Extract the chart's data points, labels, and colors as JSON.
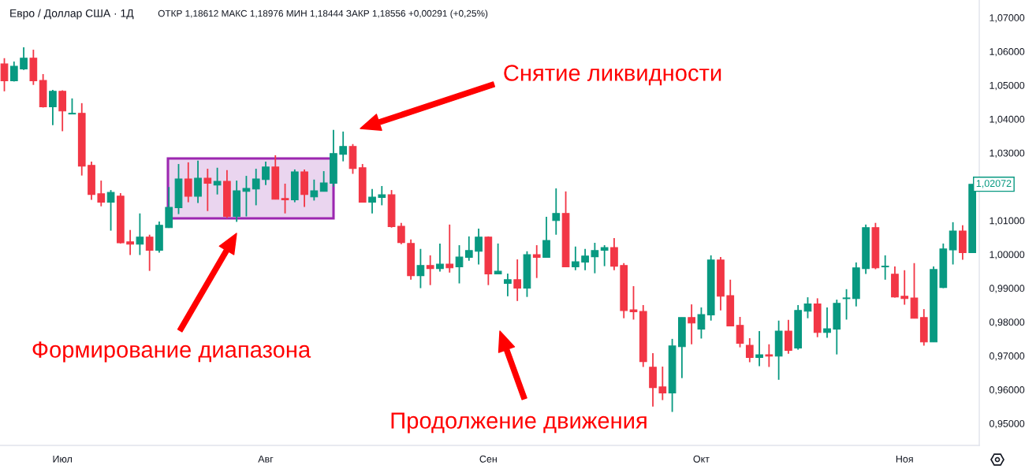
{
  "chart_data": {
    "type": "candlestick",
    "title": "Евро / Доллар США · 1Д",
    "subtitle": "ОТКР 1,18612 МАКС 1,18976 МИН 1,18444 ЗАКР 1,18556 +0,00291 (+0,25%)",
    "categories": [
      null,
      null,
      null,
      null,
      null,
      null,
      "Июл",
      null,
      null,
      null,
      null,
      null,
      null,
      null,
      null,
      null,
      null,
      null,
      null,
      null,
      null,
      null,
      null,
      null,
      null,
      null,
      null,
      "Авг",
      null,
      null,
      null,
      null,
      null,
      null,
      null,
      null,
      null,
      null,
      null,
      null,
      null,
      null,
      null,
      null,
      null,
      null,
      null,
      null,
      null,
      null,
      "Сен",
      null,
      null,
      null,
      null,
      null,
      null,
      null,
      null,
      null,
      null,
      null,
      null,
      null,
      null,
      null,
      null,
      null,
      null,
      null,
      null,
      null,
      "Окт",
      null,
      null,
      null,
      null,
      null,
      null,
      null,
      null,
      null,
      null,
      null,
      null,
      null,
      null,
      null,
      null,
      null,
      null,
      null,
      null,
      "Ноя",
      null,
      null,
      null,
      null,
      null,
      null,
      null
    ],
    "ohlc": [
      [
        1.0563,
        1.058,
        1.0482,
        1.0513
      ],
      [
        1.0513,
        1.057,
        1.0511,
        1.0556
      ],
      [
        1.0548,
        1.0612,
        1.0545,
        1.058
      ],
      [
        1.058,
        1.0605,
        1.0501,
        1.0513
      ],
      [
        1.0514,
        1.0533,
        1.0434,
        1.0436
      ],
      [
        1.0436,
        1.0486,
        1.0382,
        1.0482
      ],
      [
        1.0482,
        1.0485,
        1.0364,
        1.0424
      ],
      [
        1.0415,
        1.0461,
        1.0414,
        1.0417
      ],
      [
        1.0417,
        1.0447,
        1.0233,
        1.0261
      ],
      [
        1.0263,
        1.0274,
        1.0161,
        1.0177
      ],
      [
        1.0179,
        1.0218,
        1.0142,
        1.0154
      ],
      [
        1.0154,
        1.019,
        1.007,
        1.0183
      ],
      [
        1.0172,
        1.0181,
        1.0032,
        1.0034
      ],
      [
        1.0037,
        1.0072,
        0.9998,
        1.003
      ],
      [
        1.003,
        1.0121,
        0.9998,
        1.0051
      ],
      [
        1.0051,
        1.0058,
        0.9951,
        1.0012
      ],
      [
        1.0012,
        1.0097,
        1.0005,
        1.0086
      ],
      [
        1.0079,
        1.0199,
        1.0078,
        1.0139
      ],
      [
        1.0138,
        1.0267,
        1.0119,
        1.0223
      ],
      [
        1.0223,
        1.0272,
        1.0154,
        1.0172
      ],
      [
        1.0172,
        1.0277,
        1.0152,
        1.0225
      ],
      [
        1.0225,
        1.0253,
        1.0128,
        1.021
      ],
      [
        1.0205,
        1.0256,
        1.0177,
        1.0216
      ],
      [
        1.0216,
        1.0249,
        1.0107,
        1.0112
      ],
      [
        1.0112,
        1.0218,
        1.0096,
        1.0188
      ],
      [
        1.0186,
        1.0232,
        1.0112,
        1.0195
      ],
      [
        1.0193,
        1.0253,
        1.0145,
        1.0223
      ],
      [
        1.0221,
        1.0274,
        1.0205,
        1.0258
      ],
      [
        1.0258,
        1.0293,
        1.0163,
        1.0163
      ],
      [
        1.0165,
        1.0209,
        1.0121,
        1.0161
      ],
      [
        1.0161,
        1.0251,
        1.0154,
        1.0244
      ],
      [
        1.0244,
        1.0251,
        1.014,
        1.0177
      ],
      [
        1.017,
        1.0221,
        1.0159,
        1.0188
      ],
      [
        1.0186,
        1.0246,
        1.0186,
        1.0211
      ],
      [
        1.021,
        1.0368,
        1.02,
        1.0298
      ],
      [
        1.0296,
        1.0363,
        1.0275,
        1.0319
      ],
      [
        1.0319,
        1.0326,
        1.0238,
        1.0254
      ],
      [
        1.0256,
        1.0267,
        1.0154,
        1.0154
      ],
      [
        1.0154,
        1.0193,
        1.0121,
        1.0169
      ],
      [
        1.0168,
        1.0202,
        1.0145,
        1.0176
      ],
      [
        1.0176,
        1.019,
        1.0079,
        1.0082
      ],
      [
        1.0083,
        1.0093,
        1.003,
        1.0035
      ],
      [
        1.0032,
        1.0044,
        0.9925,
        0.9937
      ],
      [
        0.9937,
        1.0016,
        0.99,
        0.9967
      ],
      [
        0.9967,
        0.9997,
        0.9909,
        0.9958
      ],
      [
        0.9958,
        1.0032,
        0.9949,
        0.9971
      ],
      [
        0.9971,
        1.0088,
        0.9946,
        0.996
      ],
      [
        0.9963,
        1.0027,
        0.9914,
        0.9992
      ],
      [
        0.9991,
        1.0053,
        0.9981,
        1.0011
      ],
      [
        1.0009,
        1.0076,
        0.997,
        1.0051
      ],
      [
        1.0051,
        1.0053,
        0.9909,
        0.9942
      ],
      [
        0.9942,
        1.0032,
        0.9942,
        0.995
      ],
      [
        0.9914,
        0.9943,
        0.9876,
        0.9925
      ],
      [
        0.9925,
        0.9985,
        0.9862,
        0.99
      ],
      [
        0.99,
        1.0009,
        0.9874,
        0.9999
      ],
      [
        0.9999,
        1.0027,
        0.993,
        0.9991
      ],
      [
        0.9991,
        1.0111,
        0.9991,
        1.0041
      ],
      [
        1.01,
        1.0195,
        1.0058,
        1.0121
      ],
      [
        1.0121,
        1.0186,
        0.9963,
        0.9963
      ],
      [
        0.9963,
        1.0023,
        0.9953,
        0.9978
      ],
      [
        0.9977,
        1.0016,
        0.9953,
        0.9995
      ],
      [
        0.9993,
        1.0034,
        0.9944,
        1.0011
      ],
      [
        1.0012,
        1.0027,
        0.9965,
        1.002
      ],
      [
        1.002,
        1.0048,
        0.9953,
        0.9965
      ],
      [
        0.9967,
        0.9974,
        0.9811,
        0.9834
      ],
      [
        0.9836,
        0.9906,
        0.9807,
        0.983
      ],
      [
        0.9831,
        0.985,
        0.9667,
        0.9683
      ],
      [
        0.9666,
        0.9708,
        0.955,
        0.9606
      ],
      [
        0.9608,
        0.9668,
        0.9569,
        0.959
      ],
      [
        0.959,
        0.975,
        0.9534,
        0.9729
      ],
      [
        0.9727,
        0.9813,
        0.9634,
        0.9813
      ],
      [
        0.9813,
        0.9852,
        0.9734,
        0.9797
      ],
      [
        0.9779,
        0.9843,
        0.9751,
        0.9822
      ],
      [
        0.9821,
        0.9997,
        0.9804,
        0.9983
      ],
      [
        0.9983,
        0.9992,
        0.9834,
        0.9876
      ],
      [
        0.9878,
        0.9925,
        0.9788,
        0.9788
      ],
      [
        0.979,
        0.9815,
        0.9725,
        0.9737
      ],
      [
        0.9731,
        0.9752,
        0.9681,
        0.9695
      ],
      [
        0.9695,
        0.9773,
        0.9669,
        0.9703
      ],
      [
        0.9703,
        0.9734,
        0.9667,
        0.9699
      ],
      [
        0.9699,
        0.9804,
        0.9629,
        0.9773
      ],
      [
        0.9773,
        0.9806,
        0.9706,
        0.9716
      ],
      [
        0.9723,
        0.985,
        0.9718,
        0.9834
      ],
      [
        0.9832,
        0.9873,
        0.9811,
        0.9853
      ],
      [
        0.9853,
        0.987,
        0.9755,
        0.9769
      ],
      [
        0.9769,
        0.9843,
        0.9753,
        0.978
      ],
      [
        0.9779,
        0.9866,
        0.9704,
        0.9855
      ],
      [
        0.9869,
        0.9897,
        0.9807,
        0.9871
      ],
      [
        0.9869,
        0.9976,
        0.9846,
        0.996
      ],
      [
        0.9958,
        1.0088,
        0.9942,
        1.0079
      ],
      [
        1.0079,
        1.0093,
        0.9956,
        0.996
      ],
      [
        0.9963,
        0.9997,
        0.9925,
        0.9965
      ],
      [
        0.9941,
        0.9964,
        0.9872,
        0.9874
      ],
      [
        0.9876,
        0.9953,
        0.9851,
        0.9869
      ],
      [
        0.9871,
        0.9974,
        0.9811,
        0.9811
      ],
      [
        0.9813,
        0.9838,
        0.973,
        0.9741
      ],
      [
        0.9741,
        0.9964,
        0.9741,
        0.9955
      ],
      [
        0.9902,
        1.0032,
        0.99,
        1.0016
      ],
      [
        1.0013,
        1.0095,
        0.997,
        1.0069
      ],
      [
        1.0069,
        1.0086,
        0.9984,
        1.0005
      ],
      [
        1.0005,
        1.02072,
        1.0005,
        1.02072
      ]
    ],
    "colors": [
      "#f23645",
      "#089981",
      "#089981",
      "#f23645",
      "#f23645",
      "#089981",
      "#f23645",
      "#089981",
      "#f23645",
      "#f23645",
      "#f23645",
      "#089981",
      "#f23645",
      "#f23645",
      "#089981",
      "#f23645",
      "#089981",
      "#089981",
      "#089981",
      "#f23645",
      "#089981",
      "#f23645",
      "#089981",
      "#f23645",
      "#089981",
      "#089981",
      "#089981",
      "#089981",
      "#f23645",
      "#f23645",
      "#089981",
      "#f23645",
      "#089981",
      "#089981",
      "#089981",
      "#089981",
      "#f23645",
      "#f23645",
      "#089981",
      "#089981",
      "#f23645",
      "#f23645",
      "#f23645",
      "#089981",
      "#f23645",
      "#089981",
      "#f23645",
      "#089981",
      "#089981",
      "#089981",
      "#f23645",
      "#089981",
      "#089981",
      "#f23645",
      "#089981",
      "#f23645",
      "#089981",
      "#089981",
      "#f23645",
      "#089981",
      "#089981",
      "#089981",
      "#089981",
      "#f23645",
      "#f23645",
      "#f23645",
      "#f23645",
      "#f23645",
      "#f23645",
      "#089981",
      "#089981",
      "#f23645",
      "#089981",
      "#089981",
      "#f23645",
      "#f23645",
      "#f23645",
      "#f23645",
      "#089981",
      "#f23645",
      "#089981",
      "#f23645",
      "#089981",
      "#089981",
      "#f23645",
      "#089981",
      "#089981",
      "#089981",
      "#089981",
      "#089981",
      "#f23645",
      "#089981",
      "#f23645",
      "#f23645",
      "#f23645",
      "#f23645",
      "#089981",
      "#089981",
      "#089981",
      "#f23645",
      "#089981"
    ],
    "ylim": [
      0.9435,
      1.0752
    ],
    "yticks": [
      {
        "value": 0.95,
        "label": "0,95000"
      },
      {
        "value": 0.96,
        "label": "0,96000"
      },
      {
        "value": 0.97,
        "label": "0,97000"
      },
      {
        "value": 0.98,
        "label": "0,98000"
      },
      {
        "value": 0.99,
        "label": "0,99000"
      },
      {
        "value": 1.0,
        "label": "1,00000"
      },
      {
        "value": 1.01,
        "label": "1,01000"
      },
      {
        "value": 1.03,
        "label": "1,03000"
      },
      {
        "value": 1.04,
        "label": "1,04000"
      },
      {
        "value": 1.05,
        "label": "1,05000"
      },
      {
        "value": 1.06,
        "label": "1,06000"
      },
      {
        "value": 1.07,
        "label": "1,07000"
      }
    ],
    "annotations": [
      "Снятие ликвидности",
      "Формирование диапазона",
      "Продолжение движения",
      "1,02072"
    ]
  }
}
